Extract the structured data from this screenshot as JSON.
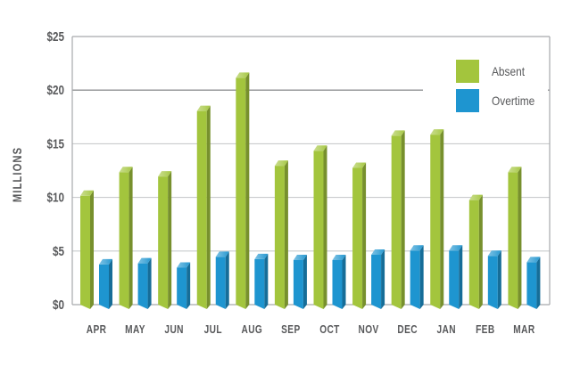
{
  "chart_data": {
    "type": "bar",
    "title": "",
    "xlabel": "",
    "ylabel": "MILLIONS",
    "categories": [
      "APR",
      "MAY",
      "JUN",
      "JUL",
      "AUG",
      "SEP",
      "OCT",
      "NOV",
      "DEC",
      "JAN",
      "FEB",
      "MAR"
    ],
    "series": [
      {
        "name": "Absent",
        "color": "#a3c53d",
        "values": [
          10.4,
          12.6,
          12.2,
          18.3,
          21.4,
          13.2,
          14.6,
          13.0,
          16.0,
          16.1,
          10.0,
          12.6
        ]
      },
      {
        "name": "Overtime",
        "color": "#1e95d0",
        "values": [
          4.0,
          4.1,
          3.7,
          4.7,
          4.5,
          4.4,
          4.4,
          4.9,
          5.3,
          5.3,
          4.8,
          4.2
        ]
      }
    ],
    "ylim": [
      0,
      25
    ],
    "ytick_values": [
      0,
      5,
      10,
      15,
      20,
      25
    ],
    "ytick_labels": [
      "$0",
      "$5",
      "$10",
      "$15",
      "$20",
      "$25"
    ],
    "grid": true,
    "emphasized_gridline_value": 20,
    "legend_position": "top-right",
    "colors": {
      "grid": "#c9cbcd",
      "grid_strong": "#909295",
      "axis": "#a7a9ac",
      "text": "#58595b",
      "background": "#ffffff"
    }
  }
}
